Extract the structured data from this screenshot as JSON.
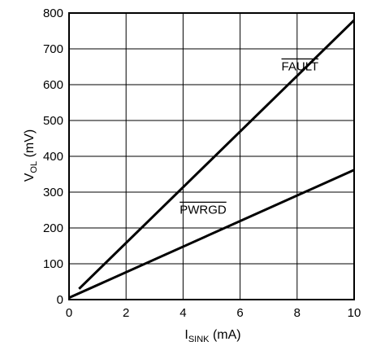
{
  "chart_data": {
    "type": "line",
    "title": "",
    "xlabel": {
      "main": "I",
      "sub": "SINK",
      "unit": " (mA)"
    },
    "ylabel": {
      "main": "V",
      "sub": "OL",
      "unit": " (mV)"
    },
    "xlim": [
      0,
      10
    ],
    "ylim": [
      0,
      800
    ],
    "xticks": [
      0,
      2,
      4,
      6,
      8,
      10
    ],
    "yticks": [
      0,
      100,
      200,
      300,
      400,
      500,
      600,
      700,
      800
    ],
    "grid": true,
    "legend": "inline labels",
    "series": [
      {
        "name": "FAULT",
        "overline": true,
        "x": [
          0.35,
          10
        ],
        "y": [
          30,
          780
        ]
      },
      {
        "name": "PWRGD",
        "overline": true,
        "x": [
          0,
          10
        ],
        "y": [
          5,
          362
        ]
      }
    ]
  }
}
